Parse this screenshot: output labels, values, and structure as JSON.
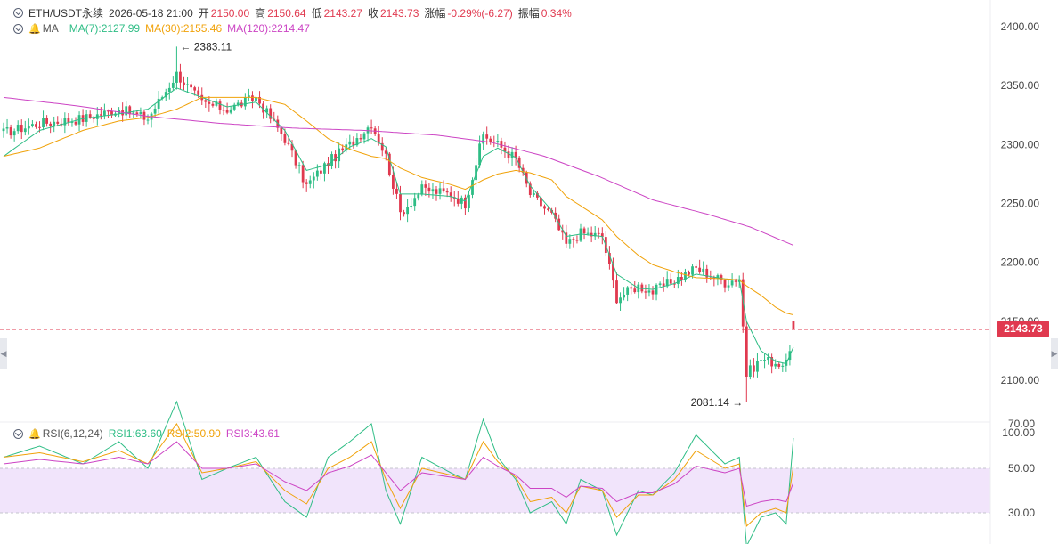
{
  "header": {
    "symbol": "ETH/USDT永续",
    "datetime": "2026-05-18 21:00",
    "open_label": "开",
    "open_value": "2150.00",
    "high_label": "高",
    "high_value": "2150.64",
    "low_label": "低",
    "low_value": "2143.27",
    "close_label": "收",
    "close_value": "2143.73",
    "change_label": "涨幅",
    "change_value": "-0.29%(-6.27)",
    "amplitude_label": "振幅",
    "amplitude_value": "0.34%"
  },
  "ma_legend": {
    "label": "MA",
    "ma7": "MA(7):2127.99",
    "ma30": "MA(30):2155.46",
    "ma120": "MA(120):2214.47"
  },
  "rsi_legend": {
    "label": "RSI(6,12,24)",
    "rsi1": "RSI1:63.60",
    "rsi2": "RSI2:50.90",
    "rsi3": "RSI3:43.61"
  },
  "current_price": "2143.73",
  "colors": {
    "up": "#2ebd85",
    "down": "#e0394f",
    "ma7": "#2ebd85",
    "ma30": "#f0a20a",
    "ma120": "#cc44c4",
    "rsi1": "#2ebd85",
    "rsi2": "#f0a20a",
    "rsi3": "#cc44c4",
    "rsi_band": "#f1e4fb"
  },
  "icons": {
    "collapse": "chevron-circle-icon",
    "alert": "bell-icon",
    "scroll_left": "caret-left-icon",
    "scroll_right": "caret-right-icon"
  },
  "chart_data": [
    {
      "type": "candlestick",
      "interval": "1h",
      "last_candle_time": "2026-05-18 21:00",
      "y_ticks": [
        2100,
        2150,
        2200,
        2250,
        2300,
        2350,
        2400
      ],
      "y_tick_labels": [
        "2100.00",
        "2150.00",
        "2200.00",
        "2250.00",
        "2300.00",
        "2350.00",
        "2400.00"
      ],
      "ylim": [
        2067,
        2415
      ],
      "annotations": [
        {
          "text": "2383.11",
          "value": 2383.11,
          "kind": "high"
        },
        {
          "text": "2081.14",
          "value": 2081.14,
          "kind": "low"
        }
      ],
      "close_anchors": [
        [
          0,
          2310
        ],
        [
          10,
          2318
        ],
        [
          22,
          2322
        ],
        [
          32,
          2330
        ],
        [
          40,
          2322
        ],
        [
          48,
          2360
        ],
        [
          55,
          2335
        ],
        [
          62,
          2330
        ],
        [
          70,
          2340
        ],
        [
          78,
          2305
        ],
        [
          84,
          2265
        ],
        [
          90,
          2285
        ],
        [
          96,
          2300
        ],
        [
          102,
          2318
        ],
        [
          106,
          2290
        ],
        [
          110,
          2242
        ],
        [
          116,
          2262
        ],
        [
          124,
          2258
        ],
        [
          128,
          2250
        ],
        [
          133,
          2308
        ],
        [
          137,
          2300
        ],
        [
          142,
          2288
        ],
        [
          146,
          2258
        ],
        [
          152,
          2240
        ],
        [
          156,
          2215
        ],
        [
          160,
          2225
        ],
        [
          166,
          2222
        ],
        [
          170,
          2170
        ],
        [
          176,
          2180
        ],
        [
          180,
          2175
        ],
        [
          186,
          2185
        ],
        [
          192,
          2195
        ],
        [
          200,
          2183
        ],
        [
          204,
          2187
        ],
        [
          206,
          2105
        ],
        [
          210,
          2118
        ],
        [
          214,
          2115
        ],
        [
          217,
          2113
        ],
        [
          219,
          2144
        ]
      ],
      "series": [
        {
          "name": "MA(7)",
          "last": 2127.99,
          "anchors": [
            [
              0,
              2290
            ],
            [
              10,
              2312
            ],
            [
              22,
              2322
            ],
            [
              32,
              2326
            ],
            [
              40,
              2330
            ],
            [
              48,
              2348
            ],
            [
              55,
              2340
            ],
            [
              62,
              2332
            ],
            [
              70,
              2336
            ],
            [
              78,
              2312
            ],
            [
              84,
              2278
            ],
            [
              90,
              2283
            ],
            [
              96,
              2298
            ],
            [
              102,
              2305
            ],
            [
              106,
              2298
            ],
            [
              110,
              2258
            ],
            [
              116,
              2258
            ],
            [
              124,
              2256
            ],
            [
              128,
              2252
            ],
            [
              133,
              2290
            ],
            [
              137,
              2297
            ],
            [
              142,
              2289
            ],
            [
              146,
              2265
            ],
            [
              152,
              2244
            ],
            [
              156,
              2222
            ],
            [
              160,
              2224
            ],
            [
              166,
              2222
            ],
            [
              170,
              2190
            ],
            [
              176,
              2178
            ],
            [
              180,
              2177
            ],
            [
              186,
              2182
            ],
            [
              192,
              2190
            ],
            [
              200,
              2186
            ],
            [
              204,
              2185
            ],
            [
              206,
              2150
            ],
            [
              210,
              2125
            ],
            [
              214,
              2116
            ],
            [
              217,
              2114
            ],
            [
              219,
              2128
            ]
          ]
        },
        {
          "name": "MA(30)",
          "last": 2155.46,
          "anchors": [
            [
              0,
              2290
            ],
            [
              10,
              2297
            ],
            [
              22,
              2312
            ],
            [
              32,
              2320
            ],
            [
              40,
              2323
            ],
            [
              48,
              2330
            ],
            [
              55,
              2340
            ],
            [
              62,
              2340
            ],
            [
              70,
              2340
            ],
            [
              78,
              2334
            ],
            [
              84,
              2320
            ],
            [
              90,
              2305
            ],
            [
              96,
              2296
            ],
            [
              102,
              2290
            ],
            [
              106,
              2288
            ],
            [
              110,
              2280
            ],
            [
              116,
              2272
            ],
            [
              124,
              2266
            ],
            [
              128,
              2262
            ],
            [
              133,
              2270
            ],
            [
              137,
              2275
            ],
            [
              142,
              2278
            ],
            [
              146,
              2276
            ],
            [
              152,
              2270
            ],
            [
              156,
              2256
            ],
            [
              160,
              2248
            ],
            [
              166,
              2236
            ],
            [
              170,
              2222
            ],
            [
              176,
              2206
            ],
            [
              180,
              2198
            ],
            [
              186,
              2192
            ],
            [
              192,
              2187
            ],
            [
              200,
              2186
            ],
            [
              204,
              2185
            ],
            [
              206,
              2180
            ],
            [
              210,
              2172
            ],
            [
              214,
              2162
            ],
            [
              217,
              2157
            ],
            [
              219,
              2155.46
            ]
          ]
        },
        {
          "name": "MA(120)",
          "last": 2214.47,
          "anchors": [
            [
              0,
              2340
            ],
            [
              20,
              2333
            ],
            [
              40,
              2324
            ],
            [
              60,
              2318
            ],
            [
              80,
              2314
            ],
            [
              100,
              2312
            ],
            [
              120,
              2308
            ],
            [
              135,
              2302
            ],
            [
              150,
              2290
            ],
            [
              165,
              2273
            ],
            [
              180,
              2253
            ],
            [
              195,
              2241
            ],
            [
              207,
              2230
            ],
            [
              219,
              2214.47
            ]
          ]
        }
      ]
    },
    {
      "type": "line",
      "title": "RSI(6,12,24)",
      "y_ticks": [
        30,
        50,
        70,
        100
      ],
      "y_tick_labels": [
        "30.00",
        "50.00",
        "70.00",
        "100.00"
      ],
      "ylim": [
        0,
        100
      ],
      "band": [
        30,
        70
      ],
      "series": [
        {
          "name": "RSI1",
          "last": 63.6,
          "anchors": [
            [
              0,
              55
            ],
            [
              10,
              60
            ],
            [
              22,
              52
            ],
            [
              32,
              62
            ],
            [
              40,
              50
            ],
            [
              48,
              80
            ],
            [
              55,
              45
            ],
            [
              62,
              50
            ],
            [
              70,
              55
            ],
            [
              78,
              35
            ],
            [
              84,
              28
            ],
            [
              90,
              55
            ],
            [
              96,
              62
            ],
            [
              102,
              70
            ],
            [
              106,
              40
            ],
            [
              110,
              25
            ],
            [
              116,
              55
            ],
            [
              124,
              48
            ],
            [
              128,
              45
            ],
            [
              133,
              72
            ],
            [
              137,
              55
            ],
            [
              142,
              45
            ],
            [
              146,
              30
            ],
            [
              152,
              35
            ],
            [
              156,
              25
            ],
            [
              160,
              45
            ],
            [
              166,
              40
            ],
            [
              170,
              20
            ],
            [
              176,
              40
            ],
            [
              180,
              38
            ],
            [
              186,
              48
            ],
            [
              192,
              65
            ],
            [
              200,
              52
            ],
            [
              204,
              55
            ],
            [
              206,
              15
            ],
            [
              210,
              28
            ],
            [
              214,
              30
            ],
            [
              217,
              25
            ],
            [
              219,
              63.6
            ]
          ]
        },
        {
          "name": "RSI2",
          "last": 50.9,
          "anchors": [
            [
              0,
              55
            ],
            [
              10,
              57
            ],
            [
              22,
              53
            ],
            [
              32,
              58
            ],
            [
              40,
              52
            ],
            [
              48,
              70
            ],
            [
              55,
              48
            ],
            [
              62,
              50
            ],
            [
              70,
              53
            ],
            [
              78,
              40
            ],
            [
              84,
              34
            ],
            [
              90,
              50
            ],
            [
              96,
              55
            ],
            [
              102,
              62
            ],
            [
              106,
              45
            ],
            [
              110,
              32
            ],
            [
              116,
              50
            ],
            [
              124,
              47
            ],
            [
              128,
              45
            ],
            [
              133,
              62
            ],
            [
              137,
              53
            ],
            [
              142,
              46
            ],
            [
              146,
              35
            ],
            [
              152,
              37
            ],
            [
              156,
              30
            ],
            [
              160,
              42
            ],
            [
              166,
              40
            ],
            [
              170,
              28
            ],
            [
              176,
              38
            ],
            [
              180,
              38
            ],
            [
              186,
              45
            ],
            [
              192,
              58
            ],
            [
              200,
              50
            ],
            [
              204,
              52
            ],
            [
              206,
              24
            ],
            [
              210,
              30
            ],
            [
              214,
              32
            ],
            [
              217,
              30
            ],
            [
              219,
              50.9
            ]
          ]
        },
        {
          "name": "RSI3",
          "last": 43.61,
          "anchors": [
            [
              0,
              52
            ],
            [
              10,
              54
            ],
            [
              22,
              52
            ],
            [
              32,
              55
            ],
            [
              40,
              52
            ],
            [
              48,
              62
            ],
            [
              55,
              50
            ],
            [
              62,
              50
            ],
            [
              70,
              52
            ],
            [
              78,
              44
            ],
            [
              84,
              40
            ],
            [
              90,
              48
            ],
            [
              96,
              51
            ],
            [
              102,
              56
            ],
            [
              106,
              48
            ],
            [
              110,
              40
            ],
            [
              116,
              48
            ],
            [
              124,
              46
            ],
            [
              128,
              45
            ],
            [
              133,
              55
            ],
            [
              137,
              51
            ],
            [
              142,
              47
            ],
            [
              146,
              41
            ],
            [
              152,
              41
            ],
            [
              156,
              37
            ],
            [
              160,
              42
            ],
            [
              166,
              41
            ],
            [
              170,
              35
            ],
            [
              176,
              39
            ],
            [
              180,
              39
            ],
            [
              186,
              43
            ],
            [
              192,
              51
            ],
            [
              200,
              48
            ],
            [
              204,
              50
            ],
            [
              206,
              33
            ],
            [
              210,
              35
            ],
            [
              214,
              36
            ],
            [
              217,
              35
            ],
            [
              219,
              43.61
            ]
          ]
        }
      ]
    }
  ]
}
